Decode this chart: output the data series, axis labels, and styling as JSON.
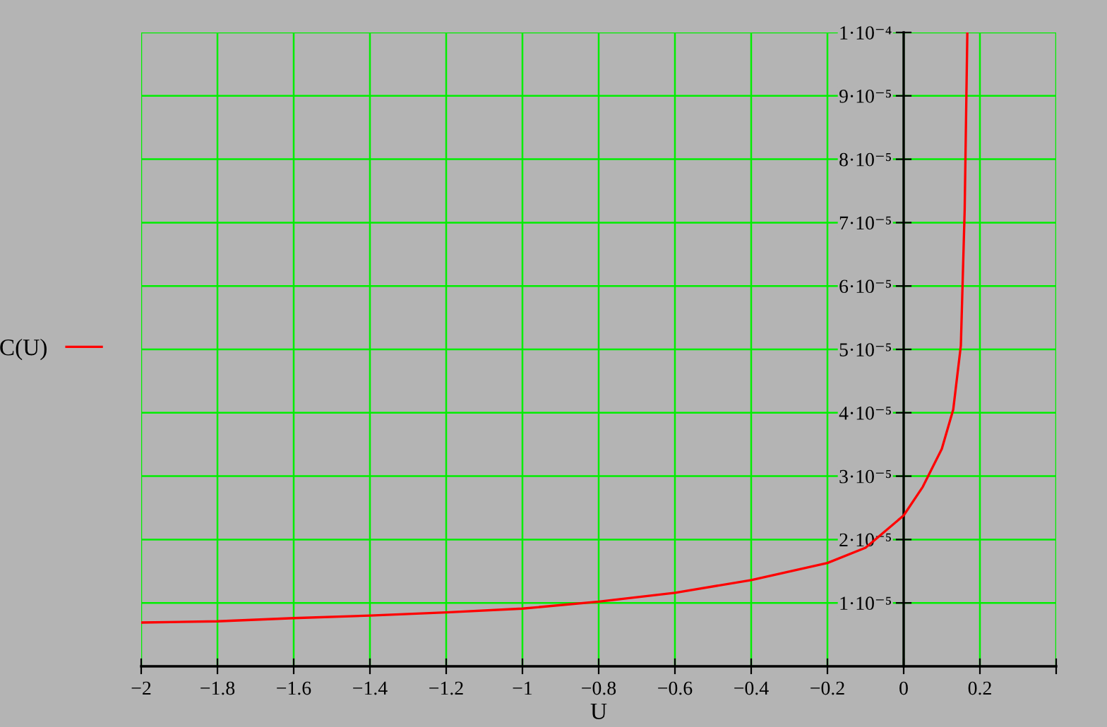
{
  "chart_data": {
    "type": "line",
    "xlabel": "U",
    "legend": "left",
    "grid": true,
    "marker": "none",
    "line_style": "solid",
    "xlim": [
      -2,
      0.4
    ],
    "ylim": [
      0,
      0.0001
    ],
    "xticks": [
      {
        "value": -2,
        "label": "−2"
      },
      {
        "value": -1.8,
        "label": "−1.8"
      },
      {
        "value": -1.6,
        "label": "−1.6"
      },
      {
        "value": -1.4,
        "label": "−1.4"
      },
      {
        "value": -1.2,
        "label": "−1.2"
      },
      {
        "value": -1,
        "label": "−1"
      },
      {
        "value": -0.8,
        "label": "−0.8"
      },
      {
        "value": -0.6,
        "label": "−0.6"
      },
      {
        "value": -0.4,
        "label": "−0.4"
      },
      {
        "value": -0.2,
        "label": "−0.2"
      },
      0,
      0.2,
      {
        "value": 0.4,
        "label": null
      }
    ],
    "yticks": [
      {
        "value": 1e-05,
        "label": "1·10⁻⁵"
      },
      {
        "value": 2e-05,
        "label": "2·10⁻⁵"
      },
      {
        "value": 3e-05,
        "label": "3·10⁻⁵"
      },
      {
        "value": 4e-05,
        "label": "4·10⁻⁵"
      },
      {
        "value": 5e-05,
        "label": "5·10⁻⁵"
      },
      {
        "value": 6e-05,
        "label": "6·10⁻⁵"
      },
      {
        "value": 7e-05,
        "label": "7·10⁻⁵"
      },
      {
        "value": 8e-05,
        "label": "8·10⁻⁵"
      },
      {
        "value": 9e-05,
        "label": "9·10⁻⁵"
      },
      {
        "value": 0.0001,
        "label": "1·10⁻⁴"
      }
    ],
    "x": [
      -2,
      -1.8,
      -1.6,
      -1.4,
      -1.2,
      -1,
      -0.8,
      -0.6,
      -0.4,
      -0.2,
      -0.1,
      0,
      0.05,
      0.1,
      0.13,
      0.15,
      0.16,
      0.167
    ],
    "series": [
      {
        "name": "C(U)",
        "color": "#ff0000",
        "values": [
          6.9e-06,
          7.1e-06,
          7.6e-06,
          8e-06,
          8.5e-06,
          9.1e-06,
          1.02e-05,
          1.16e-05,
          1.36e-05,
          1.63e-05,
          1.87e-05,
          2.38e-05,
          2.83e-05,
          3.43e-05,
          4.05e-05,
          5.06e-05,
          7.2e-05,
          0.0001
        ]
      }
    ]
  }
}
